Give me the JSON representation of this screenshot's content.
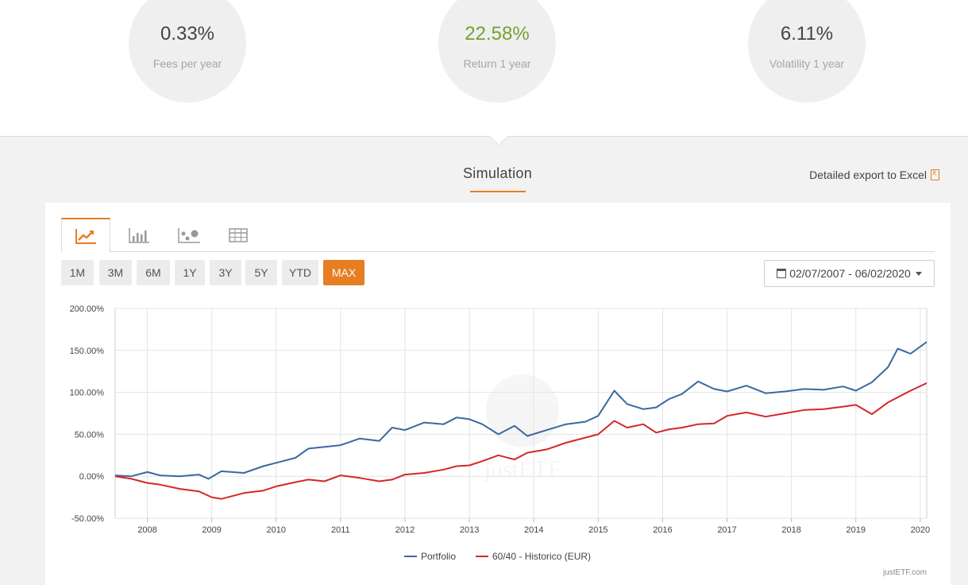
{
  "kpis": [
    {
      "value": "0.33%",
      "label": "Fees per year"
    },
    {
      "value": "22.58%",
      "label": "Return 1 year"
    },
    {
      "value": "6.11%",
      "label": "Volatility 1 year"
    }
  ],
  "simulation": {
    "title": "Simulation",
    "export_label": "Detailed export to Excel"
  },
  "view_tabs": [
    "line-chart-icon",
    "bar-chart-icon",
    "scatter-chart-icon",
    "table-icon"
  ],
  "range_buttons": [
    "1M",
    "3M",
    "6M",
    "1Y",
    "3Y",
    "5Y",
    "YTD",
    "MAX"
  ],
  "active_range": "MAX",
  "date_range": "02/07/2007 - 06/02/2020",
  "colors": {
    "accent": "#e67e22",
    "portfolio": "#3d68a0",
    "benchmark": "#d6262a",
    "positive": "#76a02f"
  },
  "chart_data": {
    "type": "line",
    "title": "",
    "xlabel": "",
    "ylabel": "",
    "x_range": [
      2007.5,
      2020.1
    ],
    "ylim": [
      -50,
      200
    ],
    "y_ticks": [
      -50,
      0,
      50,
      100,
      150,
      200
    ],
    "y_tick_labels": [
      "-50.00%",
      "0.00%",
      "50.00%",
      "100.00%",
      "150.00%",
      "200.00%"
    ],
    "x_ticks": [
      2008,
      2009,
      2010,
      2011,
      2012,
      2013,
      2014,
      2015,
      2016,
      2017,
      2018,
      2019,
      2020
    ],
    "x_tick_labels": [
      "2008",
      "2009",
      "2010",
      "2011",
      "2012",
      "2013",
      "2014",
      "2015",
      "2016",
      "2017",
      "2018",
      "2019",
      "2020"
    ],
    "grid": true,
    "legend_position": "bottom-center",
    "credit": "justETF.com",
    "watermark": "justETF",
    "series": [
      {
        "name": "Portfolio",
        "color": "#3d68a0",
        "x": [
          2007.5,
          2007.75,
          2008.0,
          2008.2,
          2008.5,
          2008.8,
          2008.95,
          2009.15,
          2009.5,
          2009.8,
          2010.0,
          2010.3,
          2010.5,
          2010.75,
          2011.0,
          2011.3,
          2011.6,
          2011.8,
          2012.0,
          2012.3,
          2012.6,
          2012.8,
          2013.0,
          2013.2,
          2013.45,
          2013.7,
          2013.9,
          2014.2,
          2014.5,
          2014.8,
          2015.0,
          2015.25,
          2015.45,
          2015.7,
          2015.9,
          2016.1,
          2016.3,
          2016.55,
          2016.8,
          2017.0,
          2017.3,
          2017.6,
          2017.9,
          2018.2,
          2018.5,
          2018.8,
          2019.0,
          2019.25,
          2019.5,
          2019.65,
          2019.85,
          2020.1
        ],
        "values": [
          1,
          0,
          5,
          1,
          0,
          2,
          -3,
          6,
          4,
          12,
          16,
          22,
          33,
          35,
          37,
          45,
          42,
          58,
          55,
          64,
          62,
          70,
          68,
          62,
          50,
          60,
          48,
          55,
          62,
          65,
          72,
          102,
          86,
          80,
          82,
          92,
          98,
          113,
          104,
          101,
          108,
          99,
          101,
          104,
          103,
          107,
          102,
          112,
          130,
          152,
          146,
          160
        ]
      },
      {
        "name": "60/40 - Historico (EUR)",
        "color": "#d6262a",
        "x": [
          2007.5,
          2007.75,
          2008.0,
          2008.2,
          2008.5,
          2008.8,
          2009.0,
          2009.15,
          2009.5,
          2009.8,
          2010.0,
          2010.3,
          2010.5,
          2010.75,
          2011.0,
          2011.3,
          2011.6,
          2011.8,
          2012.0,
          2012.3,
          2012.6,
          2012.8,
          2013.0,
          2013.2,
          2013.45,
          2013.7,
          2013.9,
          2014.2,
          2014.5,
          2014.8,
          2015.0,
          2015.25,
          2015.45,
          2015.7,
          2015.9,
          2016.1,
          2016.3,
          2016.55,
          2016.8,
          2017.0,
          2017.3,
          2017.6,
          2017.9,
          2018.2,
          2018.5,
          2018.8,
          2019.0,
          2019.25,
          2019.5,
          2019.65,
          2019.85,
          2020.1
        ],
        "values": [
          0,
          -3,
          -8,
          -10,
          -15,
          -18,
          -25,
          -27,
          -20,
          -17,
          -12,
          -7,
          -4,
          -6,
          1,
          -2,
          -6,
          -4,
          2,
          4,
          8,
          12,
          13,
          18,
          25,
          20,
          28,
          32,
          40,
          46,
          50,
          66,
          58,
          62,
          52,
          56,
          58,
          62,
          63,
          72,
          76,
          71,
          75,
          79,
          80,
          83,
          85,
          74,
          88,
          94,
          102,
          111
        ]
      }
    ]
  }
}
